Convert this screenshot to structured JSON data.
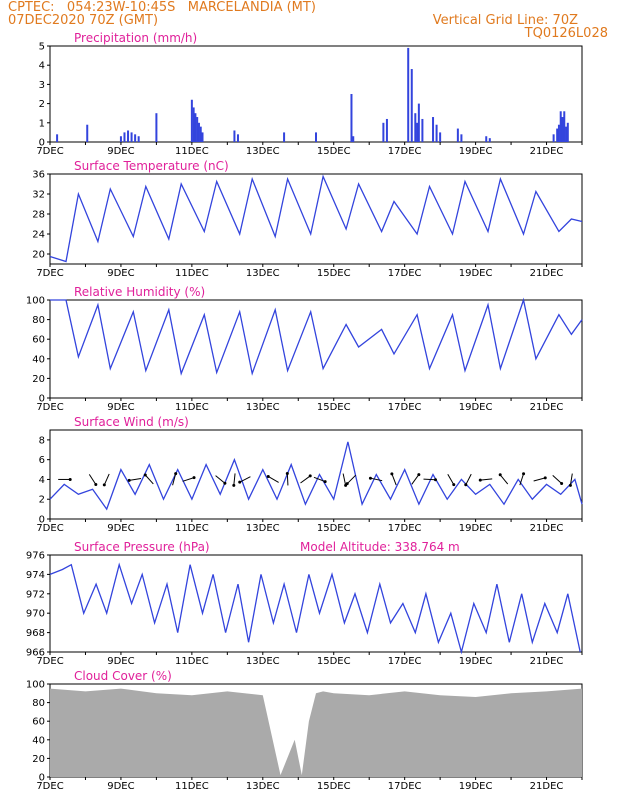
{
  "header": {
    "line1": "CPTEC:   054:23W-10:45S   MARCELANDIA (MT)",
    "line2": "07DEC2020 70Z (GMT)",
    "vertical_grid": "Vertical Grid Line: 70Z",
    "code": "TQ0126L028"
  },
  "colors": {
    "series": "#3344dd",
    "title": "#e0209a",
    "header": "#e07a1f",
    "cloud": "#aaaaaa",
    "arrow": "#000000"
  },
  "chart_data": [
    {
      "type": "bar",
      "title": "Precipitation (mm/h)",
      "x_unit": "days since 7DEC",
      "xlim": [
        0,
        15
      ],
      "ylim": [
        0,
        5
      ],
      "yticks": [
        0,
        1,
        2,
        3,
        4,
        5
      ],
      "xtick_labels": [
        "7DEC",
        "9DEC",
        "11DEC",
        "13DEC",
        "15DEC",
        "17DEC",
        "19DEC",
        "21DEC"
      ],
      "x": [
        0.2,
        1.05,
        2.0,
        2.1,
        2.2,
        2.3,
        2.4,
        2.5,
        3.0,
        4.0,
        4.05,
        4.1,
        4.15,
        4.2,
        4.25,
        4.3,
        5.2,
        5.3,
        6.6,
        7.5,
        8.5,
        8.55,
        9.4,
        9.5,
        10.1,
        10.2,
        10.3,
        10.35,
        10.4,
        10.5,
        10.8,
        10.9,
        11.0,
        11.5,
        11.6,
        12.3,
        12.4,
        14.2,
        14.3,
        14.35,
        14.4,
        14.45,
        14.5,
        14.55,
        14.6
      ],
      "values": [
        0.4,
        0.9,
        0.3,
        0.5,
        0.6,
        0.5,
        0.4,
        0.3,
        1.5,
        2.2,
        1.8,
        1.5,
        1.3,
        1.0,
        0.8,
        0.5,
        0.6,
        0.4,
        0.5,
        0.5,
        2.5,
        0.3,
        1.0,
        1.2,
        4.9,
        3.8,
        1.5,
        1.0,
        2.0,
        1.2,
        1.3,
        0.9,
        0.5,
        0.7,
        0.4,
        0.3,
        0.2,
        0.4,
        0.7,
        0.9,
        1.6,
        1.3,
        1.6,
        0.8,
        1.0
      ]
    },
    {
      "type": "line",
      "title": "Surface Temperature (nC)",
      "x_unit": "days since 7DEC",
      "xlim": [
        0,
        15
      ],
      "ylim": [
        18,
        36
      ],
      "yticks": [
        20,
        24,
        28,
        32,
        36
      ],
      "xtick_labels": [
        "7DEC",
        "9DEC",
        "11DEC",
        "13DEC",
        "15DEC",
        "17DEC",
        "19DEC",
        "21DEC"
      ],
      "x": [
        0,
        0.45,
        0.8,
        1.35,
        1.7,
        2.35,
        2.7,
        3.35,
        3.7,
        4.35,
        4.7,
        5.35,
        5.7,
        6.35,
        6.7,
        7.35,
        7.7,
        8.35,
        8.7,
        9.35,
        9.7,
        10.35,
        10.7,
        11.35,
        11.7,
        12.35,
        12.7,
        13.35,
        13.7,
        14.35,
        14.7,
        15.0
      ],
      "values": [
        19.5,
        18.5,
        32.0,
        22.5,
        33.0,
        23.5,
        33.5,
        23.0,
        34.0,
        24.5,
        34.5,
        24.0,
        35.0,
        23.5,
        35.0,
        24.0,
        35.5,
        25.0,
        34.0,
        24.5,
        30.5,
        24.0,
        33.5,
        24.0,
        34.5,
        24.5,
        35.0,
        24.0,
        32.5,
        24.5,
        27.0,
        26.5
      ]
    },
    {
      "type": "line",
      "title": "Relative Humidity (%)",
      "x_unit": "days since 7DEC",
      "xlim": [
        0,
        15
      ],
      "ylim": [
        0,
        100
      ],
      "yticks": [
        0,
        20,
        40,
        60,
        80,
        100
      ],
      "xtick_labels": [
        "7DEC",
        "9DEC",
        "11DEC",
        "13DEC",
        "15DEC",
        "17DEC",
        "19DEC",
        "21DEC"
      ],
      "x": [
        0,
        0.45,
        0.8,
        1.35,
        1.7,
        2.35,
        2.7,
        3.35,
        3.7,
        4.35,
        4.7,
        5.35,
        5.7,
        6.35,
        6.7,
        7.35,
        7.7,
        8.35,
        8.7,
        9.35,
        9.7,
        10.35,
        10.7,
        11.35,
        11.7,
        12.35,
        12.7,
        13.35,
        13.7,
        14.35,
        14.7,
        15.0
      ],
      "values": [
        100,
        100,
        42,
        95,
        30,
        88,
        28,
        90,
        25,
        85,
        26,
        88,
        25,
        90,
        28,
        88,
        30,
        75,
        52,
        70,
        45,
        85,
        30,
        85,
        28,
        95,
        30,
        100,
        40,
        85,
        65,
        80
      ]
    },
    {
      "type": "line",
      "title": "Surface Wind (m/s)",
      "x_unit": "days since 7DEC",
      "xlim": [
        0,
        15
      ],
      "ylim": [
        0,
        9
      ],
      "yticks": [
        0,
        2,
        4,
        6,
        8
      ],
      "xtick_labels": [
        "7DEC",
        "9DEC",
        "11DEC",
        "13DEC",
        "15DEC",
        "17DEC",
        "19DEC",
        "21DEC"
      ],
      "x": [
        0,
        0.4,
        0.8,
        1.2,
        1.6,
        2.0,
        2.4,
        2.8,
        3.2,
        3.6,
        4.0,
        4.4,
        4.8,
        5.2,
        5.6,
        6.0,
        6.4,
        6.8,
        7.2,
        7.6,
        8.0,
        8.4,
        8.8,
        9.2,
        9.6,
        10.0,
        10.4,
        10.8,
        11.2,
        11.6,
        12.0,
        12.4,
        12.8,
        13.2,
        13.6,
        14.0,
        14.4,
        14.8,
        15.0
      ],
      "values": [
        2.0,
        3.5,
        2.5,
        3.0,
        1.0,
        5.0,
        2.5,
        5.5,
        2.0,
        5.0,
        2.0,
        5.5,
        2.5,
        6.0,
        2.0,
        5.0,
        2.0,
        5.5,
        1.5,
        4.5,
        2.0,
        7.8,
        1.5,
        4.5,
        2.0,
        5.0,
        1.5,
        4.5,
        2.0,
        4.0,
        2.5,
        3.5,
        1.5,
        4.0,
        2.0,
        3.5,
        2.5,
        4.0,
        1.5
      ],
      "arrows": [
        0.4,
        1.2,
        1.6,
        2.4,
        2.8,
        3.5,
        3.9,
        4.8,
        5.2,
        5.5,
        6.3,
        6.7,
        7.2,
        7.6,
        8.3,
        8.5,
        9.2,
        9.7,
        10.3,
        10.7,
        11.3,
        11.8,
        12.3,
        12.8,
        13.3,
        13.8,
        14.3,
        14.7
      ]
    },
    {
      "type": "line",
      "title": "Surface Pressure (hPa)",
      "subtitle": "Model Altitude: 338.764 m",
      "x_unit": "days since 7DEC",
      "xlim": [
        0,
        15
      ],
      "ylim": [
        966,
        976
      ],
      "yticks": [
        966,
        968,
        970,
        972,
        974,
        976
      ],
      "xtick_labels": [
        "7DEC",
        "9DEC",
        "11DEC",
        "13DEC",
        "15DEC",
        "17DEC",
        "19DEC",
        "21DEC"
      ],
      "x": [
        0,
        0.35,
        0.6,
        0.95,
        1.3,
        1.6,
        1.95,
        2.3,
        2.6,
        2.95,
        3.3,
        3.6,
        3.95,
        4.3,
        4.6,
        4.95,
        5.3,
        5.6,
        5.95,
        6.3,
        6.6,
        6.95,
        7.3,
        7.6,
        7.95,
        8.3,
        8.6,
        8.95,
        9.3,
        9.6,
        9.95,
        10.3,
        10.6,
        10.95,
        11.3,
        11.6,
        11.95,
        12.3,
        12.6,
        12.95,
        13.3,
        13.6,
        13.95,
        14.3,
        14.6,
        14.95
      ],
      "values": [
        974,
        974.5,
        975,
        970,
        973,
        970,
        975,
        971,
        974,
        969,
        973,
        968,
        975,
        970,
        974,
        968,
        973,
        967,
        974,
        969,
        973,
        968,
        974,
        970,
        974,
        969,
        972,
        968,
        973,
        969,
        971,
        968,
        972,
        967,
        970,
        966,
        971,
        968,
        973,
        967,
        972,
        967,
        971,
        968,
        972,
        966
      ]
    },
    {
      "type": "area",
      "title": "Cloud Cover (%)",
      "x_unit": "days since 7DEC",
      "xlim": [
        0,
        15
      ],
      "ylim": [
        0,
        100
      ],
      "yticks": [
        0,
        20,
        40,
        60,
        80,
        100
      ],
      "xtick_labels": [
        "7DEC",
        "9DEC",
        "11DEC",
        "13DEC",
        "15DEC",
        "17DEC",
        "19DEC",
        "21DEC"
      ],
      "x": [
        0,
        1.0,
        2.0,
        3.0,
        4.0,
        5.0,
        6.0,
        6.5,
        6.9,
        7.1,
        7.3,
        7.5,
        7.7,
        8.0,
        9.0,
        10.0,
        11.0,
        12.0,
        13.0,
        14.0,
        15.0
      ],
      "values": [
        95,
        92,
        95,
        90,
        88,
        92,
        88,
        2,
        40,
        2,
        60,
        90,
        92,
        90,
        88,
        92,
        88,
        86,
        90,
        92,
        95
      ]
    }
  ]
}
